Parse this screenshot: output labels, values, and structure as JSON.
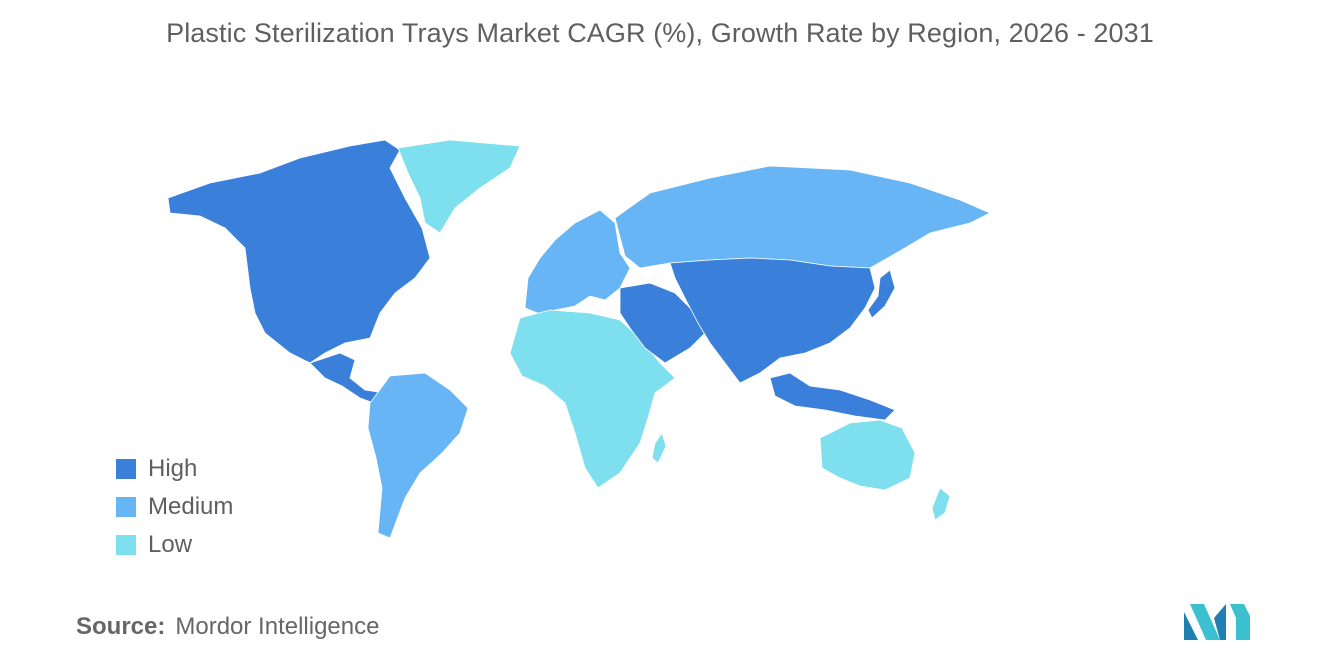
{
  "title": "Plastic Sterilization Trays Market CAGR (%), Growth Rate by Region, 2026 - 2031",
  "legend": [
    {
      "label": "High",
      "color": "#3a7fd9"
    },
    {
      "label": "Medium",
      "color": "#68b5f5"
    },
    {
      "label": "Low",
      "color": "#7ee0ee"
    }
  ],
  "colors": {
    "high": "#3a7fd9",
    "medium": "#68b5f5",
    "low": "#7ee0ee",
    "nodata": "#a9a9a9"
  },
  "regions": {
    "north_america": "high",
    "greenland": "low",
    "central_america": "high",
    "south_america": "medium",
    "europe": "medium",
    "russia": "medium",
    "africa": "low",
    "middle_east": "high",
    "asia": "high",
    "southeast_asia": "high",
    "oceania": "low"
  },
  "source": {
    "key": "Source:",
    "value": "Mordor Intelligence"
  },
  "logo_icon": "mordor-intelligence-logo"
}
